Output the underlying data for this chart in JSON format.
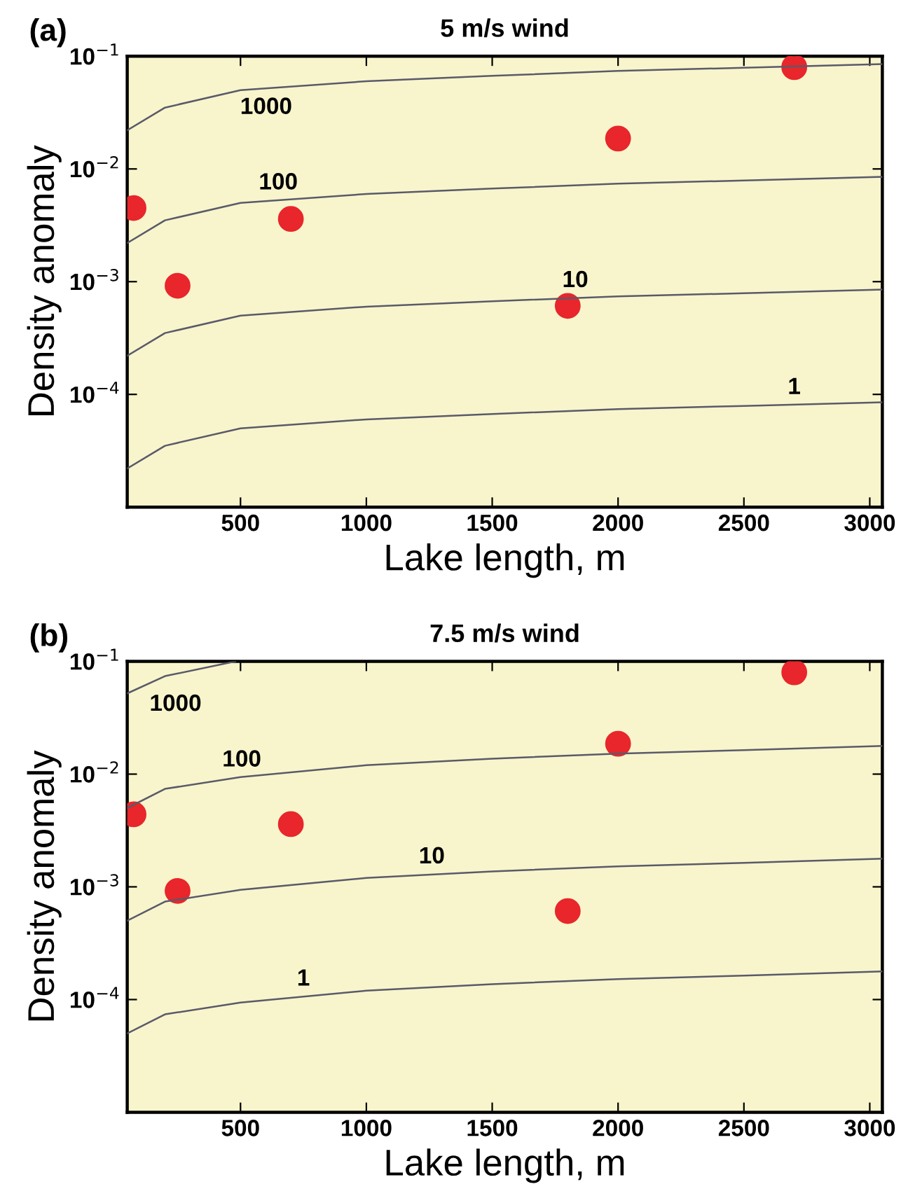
{
  "chart_data": [
    {
      "type": "scatter",
      "title": "5 m/s wind",
      "xlabel": "Lake length, m",
      "ylabel": "Density anomaly",
      "log": "y",
      "grid": false,
      "legend": false,
      "xlim": [
        50,
        3050
      ],
      "ylim": [
        1e-05,
        0.1
      ],
      "xticks": [
        500,
        1000,
        1500,
        2000,
        2500,
        3000
      ],
      "yticks": [
        {
          "value": 1e-05,
          "label": null
        },
        {
          "value": 0.0001,
          "label": "10$^{−4}$"
        },
        {
          "value": 0.001,
          "label": "10$^{−3}$"
        },
        {
          "value": 0.01,
          "label": "10$^{−2}$"
        },
        {
          "value": 0.1,
          "label": "10$^{−1}$"
        }
      ],
      "series": [
        {
          "type": "line",
          "color": "#5a5a6a",
          "x": [
            50,
            200,
            500,
            1000,
            1500,
            2000,
            2500,
            3050
          ],
          "values": [
            0.022,
            0.035,
            0.05,
            0.06,
            0.067,
            0.074,
            0.079,
            0.085
          ]
        },
        {
          "type": "line",
          "color": "#5a5a6a",
          "x": [
            50,
            200,
            500,
            1000,
            1500,
            2000,
            2500,
            3050
          ],
          "values": [
            0.0022,
            0.0035,
            0.005,
            0.006,
            0.0067,
            0.0074,
            0.0079,
            0.0085
          ]
        },
        {
          "type": "line",
          "color": "#5a5a6a",
          "x": [
            50,
            200,
            500,
            1000,
            1500,
            2000,
            2500,
            3050
          ],
          "values": [
            0.00022,
            0.00035,
            0.0005,
            0.0006,
            0.00067,
            0.00074,
            0.00079,
            0.00085
          ]
        },
        {
          "type": "line",
          "color": "#5a5a6a",
          "x": [
            50,
            200,
            500,
            1000,
            1500,
            2000,
            2500,
            3050
          ],
          "values": [
            2.2e-05,
            3.5e-05,
            5e-05,
            6e-05,
            6.7e-05,
            7.4e-05,
            7.9e-05,
            8.5e-05
          ]
        },
        {
          "color": "#e8262b",
          "marker": "circle",
          "x": [
            75,
            250,
            700,
            1800,
            2000,
            2700
          ],
          "values": [
            0.0045,
            0.00092,
            0.0036,
            0.00061,
            0.0186,
            0.08
          ]
        }
      ],
      "annotations": [
        "(a)",
        {
          "text": "1000",
          "x": 460,
          "y": 0.049
        },
        {
          "text": "100",
          "x": 650,
          "y": 0.0053
        },
        {
          "text": "10",
          "x": 1830,
          "y": 0.00072
        },
        {
          "text": "1",
          "x": 2700,
          "y": 8.1e-05
        }
      ]
    },
    {
      "type": "scatter",
      "title": "7.5 m/s wind",
      "xlabel": "Lake length, m",
      "ylabel": "Density anomaly",
      "log": "y",
      "grid": false,
      "legend": false,
      "xlim": [
        50,
        3050
      ],
      "ylim": [
        1e-05,
        0.1
      ],
      "xticks": [
        500,
        1000,
        1500,
        2000,
        2500,
        3000
      ],
      "yticks": [
        {
          "value": 1e-05,
          "label": null
        },
        {
          "value": 0.0001,
          "label": "10$^{−4}$"
        },
        {
          "value": 0.001,
          "label": "10$^{−3}$"
        },
        {
          "value": 0.01,
          "label": "10$^{−2}$"
        },
        {
          "value": 0.1,
          "label": "10$^{−1}$"
        }
      ],
      "series": [
        {
          "type": "line",
          "color": "#5a5a6a",
          "x": [
            50,
            200,
            480
          ],
          "values": [
            0.052,
            0.074,
            0.1
          ]
        },
        {
          "type": "line",
          "color": "#5a5a6a",
          "x": [
            50,
            200,
            500,
            1000,
            1500,
            2000,
            2500,
            3050
          ],
          "values": [
            0.005,
            0.0074,
            0.0094,
            0.012,
            0.0137,
            0.0152,
            0.0163,
            0.0178
          ]
        },
        {
          "type": "line",
          "color": "#5a5a6a",
          "x": [
            50,
            200,
            500,
            1000,
            1500,
            2000,
            2500,
            3050
          ],
          "values": [
            0.0005,
            0.00074,
            0.00094,
            0.0012,
            0.00137,
            0.00152,
            0.00163,
            0.00178
          ]
        },
        {
          "type": "line",
          "color": "#5a5a6a",
          "x": [
            50,
            200,
            500,
            1000,
            1500,
            2000,
            2500,
            3050
          ],
          "values": [
            5e-05,
            7.4e-05,
            9.4e-05,
            0.00012,
            0.000137,
            0.000152,
            0.000163,
            0.000178
          ]
        },
        {
          "color": "#e8262b",
          "marker": "circle",
          "x": [
            75,
            250,
            700,
            1800,
            2000,
            2700
          ],
          "values": [
            0.0044,
            0.00092,
            0.0036,
            0.00061,
            0.0186,
            0.08
          ]
        }
      ],
      "annotations": [
        "(b)",
        {
          "text": "1000",
          "x": 100,
          "y": 0.058
        },
        {
          "text": "100",
          "x": 505,
          "y": 0.0094
        },
        {
          "text": "10",
          "x": 1260,
          "y": 0.0013
        },
        {
          "text": "1",
          "x": 750,
          "y": 0.000107
        }
      ]
    }
  ]
}
